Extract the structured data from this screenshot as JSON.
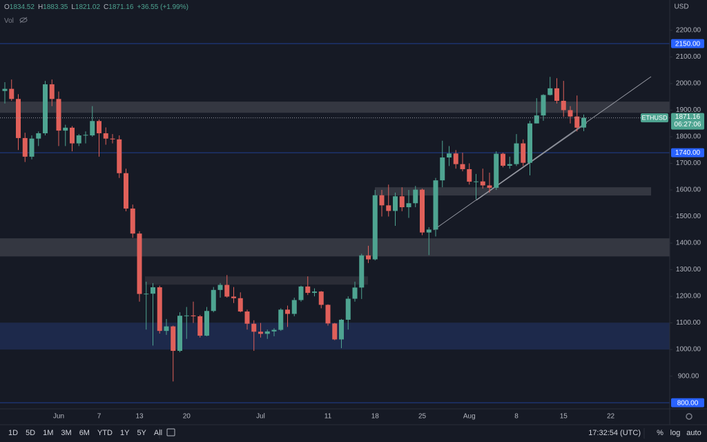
{
  "header": {
    "ohlc_labels": [
      "O",
      "H",
      "L",
      "C"
    ],
    "change": "+36.55 (+1.99%)",
    "volume_label": "Vol",
    "currency": "USD"
  },
  "toolbar": {
    "ranges": [
      "1D",
      "5D",
      "1M",
      "3M",
      "6M",
      "YTD",
      "1Y",
      "5Y",
      "All"
    ],
    "time": "17:32:54 (UTC)",
    "options": [
      "%",
      "log",
      "auto"
    ]
  },
  "chart_data": {
    "type": "candlestick",
    "symbol": "ETHUSD",
    "countdown": "06:27:06",
    "categories": [
      null,
      null,
      null,
      null,
      null,
      null,
      null,
      null,
      "Jun",
      null,
      null,
      null,
      null,
      null,
      "7",
      null,
      null,
      null,
      null,
      null,
      "13",
      null,
      null,
      null,
      null,
      null,
      null,
      "20",
      null,
      null,
      null,
      null,
      null,
      null,
      null,
      null,
      null,
      null,
      "Jul",
      null,
      null,
      null,
      null,
      null,
      null,
      null,
      null,
      null,
      "11",
      null,
      null,
      null,
      null,
      null,
      null,
      "18",
      null,
      null,
      null,
      null,
      null,
      null,
      "25",
      null,
      null,
      null,
      null,
      null,
      null,
      "Aug",
      null,
      null,
      null,
      null,
      null,
      null,
      "8",
      null,
      null,
      null,
      null,
      null,
      null,
      "15",
      null,
      null,
      null,
      null,
      null,
      null,
      "22"
    ],
    "open": [
      1972,
      1980,
      1942,
      1795,
      1725,
      1793,
      1813,
      1997,
      1942,
      1823,
      1834,
      1775,
      1805,
      1805,
      1859,
      1813,
      1793,
      1790,
      1663,
      1530,
      1436,
      1209,
      1210,
      1234,
      1070,
      1087,
      995,
      1127,
      1128,
      1125,
      1052,
      1145,
      1224,
      1243,
      1199,
      1193,
      1143,
      1097,
      1067,
      1059,
      1068,
      1074,
      1150,
      1134,
      1186,
      1237,
      1213,
      1218,
      1168,
      1098,
      1038,
      1112,
      1191,
      1233,
      1354,
      1339,
      1580,
      1542,
      1521,
      1576,
      1535,
      1550,
      1601,
      1440,
      1451,
      1636,
      1722,
      1737,
      1697,
      1678,
      1631,
      1632,
      1617,
      1608,
      1736,
      1691,
      1697,
      1775,
      1702,
      1850,
      1880,
      1957,
      1982,
      1935,
      1900,
      1876,
      1834.52,
      null,
      null,
      null,
      null
    ],
    "high": [
      2005,
      2015,
      1960,
      1815,
      1805,
      1820,
      2010,
      2015,
      1970,
      1845,
      1840,
      1810,
      1820,
      1915,
      1865,
      1835,
      1810,
      1805,
      1680,
      1545,
      1445,
      1255,
      1250,
      1240,
      1115,
      1090,
      1140,
      1160,
      1180,
      1130,
      1160,
      1235,
      1250,
      1280,
      1235,
      1215,
      1150,
      1110,
      1100,
      1075,
      1080,
      1155,
      1165,
      1195,
      1240,
      1275,
      1230,
      1220,
      1170,
      1100,
      1115,
      1200,
      1255,
      1360,
      1390,
      1600,
      1600,
      1620,
      1590,
      1610,
      1600,
      1615,
      1605,
      1460,
      1645,
      1785,
      1765,
      1750,
      1740,
      1700,
      1660,
      1680,
      1665,
      1745,
      1740,
      1725,
      1810,
      1790,
      1860,
      1945,
      1960,
      2025,
      2020,
      2010,
      1915,
      1955,
      1883.35,
      null,
      null,
      null,
      null
    ],
    "low": [
      1925,
      1935,
      1750,
      1705,
      1715,
      1765,
      1805,
      1915,
      1765,
      1765,
      1745,
      1765,
      1775,
      1800,
      1725,
      1770,
      1775,
      1645,
      1520,
      1420,
      1180,
      1075,
      1015,
      1060,
      1055,
      880,
      990,
      1040,
      1100,
      1045,
      1050,
      1140,
      1195,
      1195,
      1175,
      1140,
      1075,
      995,
      1045,
      1040,
      1050,
      1070,
      1085,
      1125,
      1180,
      1205,
      1200,
      1155,
      1090,
      1035,
      1005,
      1075,
      1180,
      1190,
      1325,
      1335,
      1500,
      1500,
      1465,
      1520,
      1495,
      1535,
      1430,
      1355,
      1425,
      1610,
      1690,
      1680,
      1670,
      1620,
      1565,
      1605,
      1590,
      1600,
      1685,
      1680,
      1690,
      1690,
      1655,
      1850,
      1860,
      1955,
      1925,
      1875,
      1850,
      1820,
      1821.02,
      null,
      null,
      null,
      null
    ],
    "close": [
      1980,
      1942,
      1795,
      1725,
      1793,
      1813,
      1997,
      1942,
      1823,
      1834,
      1775,
      1805,
      1807,
      1859,
      1813,
      1793,
      1790,
      1663,
      1530,
      1436,
      1209,
      1210,
      1234,
      1070,
      1087,
      995,
      1127,
      1128,
      1125,
      1052,
      1145,
      1224,
      1243,
      1199,
      1193,
      1143,
      1097,
      1067,
      1059,
      1068,
      1074,
      1150,
      1134,
      1186,
      1237,
      1213,
      1218,
      1168,
      1098,
      1038,
      1112,
      1191,
      1233,
      1354,
      1339,
      1580,
      1542,
      1521,
      1576,
      1535,
      1550,
      1601,
      1440,
      1451,
      1636,
      1722,
      1737,
      1697,
      1678,
      1631,
      1632,
      1617,
      1608,
      1736,
      1691,
      1697,
      1775,
      1702,
      1850,
      1880,
      1957,
      1982,
      1935,
      1900,
      1876,
      1834,
      1871.16,
      null,
      null,
      null,
      null
    ],
    "up_color": "#4ea491",
    "down_color": "#e0605a",
    "ylim": [
      777,
      2314
    ],
    "yticks": [
      {
        "value": 900,
        "label": "900.00"
      },
      {
        "value": 1000,
        "label": "1000.00"
      },
      {
        "value": 1100,
        "label": "1100.00"
      },
      {
        "value": 1200,
        "label": "1200.00"
      },
      {
        "value": 1300,
        "label": "1300.00"
      },
      {
        "value": 1400,
        "label": "1400.00"
      },
      {
        "value": 1500,
        "label": "1500.00"
      },
      {
        "value": 1600,
        "label": "1600.00"
      },
      {
        "value": 1700,
        "label": "1700.00"
      },
      {
        "value": 1800,
        "label": "1800.00"
      },
      {
        "value": 1900,
        "label": "1900.00"
      },
      {
        "value": 2000,
        "label": "2000.00"
      },
      {
        "value": 2100,
        "label": "2100.00"
      },
      {
        "value": 2200,
        "label": "2200.00"
      }
    ],
    "levels": [
      {
        "value": 2150,
        "label": "2150.00",
        "color": "#2962ff"
      },
      {
        "value": 1740,
        "label": "1740.00",
        "color": "#2962ff"
      },
      {
        "value": 800,
        "label": "800.00",
        "color": "#2962ff"
      }
    ],
    "zones": [
      {
        "low": 1890,
        "high": 1932,
        "color": "#3a3d47"
      },
      {
        "low": 1350,
        "high": 1418,
        "color": "#3a3d47"
      },
      {
        "low": 1579,
        "high": 1610,
        "color": "#3a3d47"
      },
      {
        "low": 1244,
        "high": 1275,
        "color": "#2e3039"
      },
      {
        "low": 1000,
        "high": 1101,
        "color": "#1f2d52"
      }
    ]
  }
}
